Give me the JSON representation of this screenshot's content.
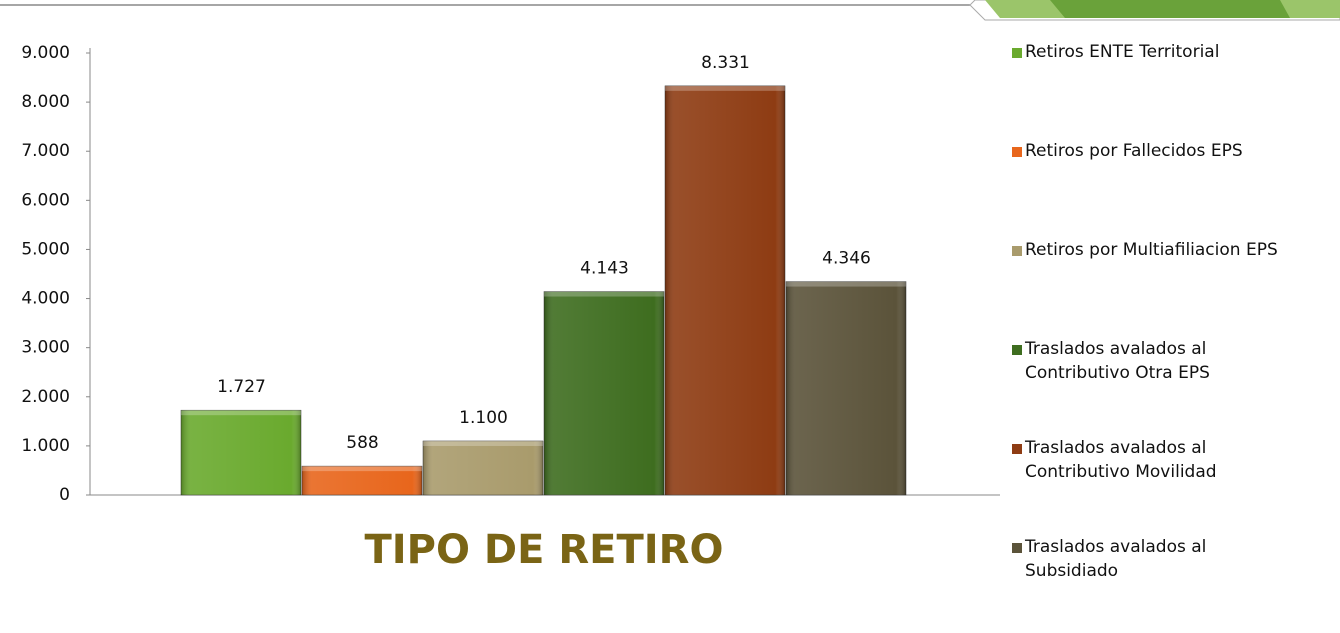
{
  "chart_data": {
    "type": "bar",
    "categories": [
      "TIPO DE RETIRO"
    ],
    "series": [
      {
        "name": "Retiros ENTE Territorial",
        "color": "#6aaa2e",
        "values": [
          1727
        ],
        "value_labels": [
          "1.727"
        ]
      },
      {
        "name": "Retiros por Fallecidos EPS",
        "color": "#e8661c",
        "values": [
          588
        ],
        "value_labels": [
          "588"
        ]
      },
      {
        "name": "Retiros por Multiafiliacion EPS",
        "color": "#a99b6c",
        "values": [
          1100
        ],
        "value_labels": [
          "1.100"
        ]
      },
      {
        "name": "Traslados avalados al\nContributivo Otra EPS",
        "color": "#3e6d1f",
        "values": [
          4143
        ],
        "value_labels": [
          "4.143"
        ]
      },
      {
        "name": "Traslados avalados al\nContributivo Movilidad",
        "color": "#8e3c13",
        "values": [
          8331
        ],
        "value_labels": [
          "8.331"
        ]
      },
      {
        "name": "Traslados avalados al\nSubsidiado",
        "color": "#5b533a",
        "values": [
          4346
        ],
        "value_labels": [
          "4.346"
        ]
      }
    ],
    "ylim": [
      0,
      9000
    ],
    "yticks": [
      {
        "value": 0,
        "label": "0"
      },
      {
        "value": 1000,
        "label": "1.000"
      },
      {
        "value": 2000,
        "label": "2.000"
      },
      {
        "value": 3000,
        "label": "3.000"
      },
      {
        "value": 4000,
        "label": "4.000"
      },
      {
        "value": 5000,
        "label": "5.000"
      },
      {
        "value": 6000,
        "label": "6.000"
      },
      {
        "value": 7000,
        "label": "7.000"
      },
      {
        "value": 8000,
        "label": "8.000"
      },
      {
        "value": 9000,
        "label": "9.000"
      }
    ],
    "legend": "right"
  }
}
